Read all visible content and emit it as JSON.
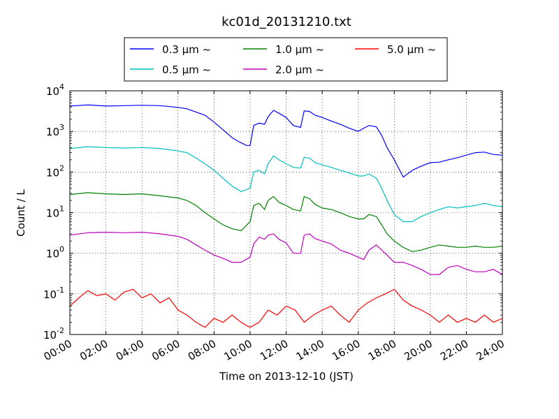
{
  "chart_data": {
    "type": "line",
    "title": "kc01d_20131210.txt",
    "xlabel": "Time on 2013-12-10 (JST)",
    "ylabel": "Count / L",
    "xlim_hours": [
      0,
      24
    ],
    "x_tick_labels": [
      "00:00",
      "02:00",
      "04:00",
      "06:00",
      "08:00",
      "10:00",
      "12:00",
      "14:00",
      "16:00",
      "18:00",
      "20:00",
      "22:00",
      "24:00"
    ],
    "y_scale": "log",
    "ylim": [
      0.01,
      10000
    ],
    "y_ticks": [
      {
        "base": "10",
        "exp": "4"
      },
      {
        "base": "10",
        "exp": "3"
      },
      {
        "base": "10",
        "exp": "2"
      },
      {
        "base": "10",
        "exp": "1"
      },
      {
        "base": "10",
        "exp": "0"
      },
      {
        "base": "10",
        "exp": "-1"
      },
      {
        "base": "10",
        "exp": "-2"
      }
    ],
    "grid": true,
    "legend": "top-center, outside plot, 3 columns",
    "series": [
      {
        "name": "0.3 μm ~",
        "color": "#0000ff",
        "x": [
          0,
          1,
          2,
          3,
          4,
          5,
          6,
          6.5,
          7,
          7.5,
          8,
          8.5,
          9,
          9.3,
          9.6,
          9.8,
          10,
          10.2,
          10.5,
          10.8,
          11,
          11.3,
          11.6,
          12,
          12.4,
          12.8,
          13,
          13.3,
          13.6,
          14,
          14.5,
          15,
          15.5,
          16,
          16.3,
          16.6,
          17,
          17.3,
          17.6,
          18,
          18.5,
          19,
          19.5,
          20,
          20.5,
          21,
          21.5,
          22,
          22.5,
          23,
          23.5,
          24
        ],
        "y": [
          4200,
          4500,
          4200,
          4300,
          4400,
          4300,
          3900,
          3600,
          3000,
          2500,
          1700,
          1100,
          700,
          580,
          500,
          450,
          450,
          1400,
          1600,
          1500,
          2300,
          3300,
          2800,
          2200,
          1400,
          1250,
          3200,
          3100,
          2500,
          2200,
          1800,
          1500,
          1200,
          1000,
          1200,
          1400,
          1300,
          800,
          400,
          200,
          75,
          110,
          140,
          170,
          175,
          200,
          225,
          260,
          300,
          310,
          270,
          260
        ]
      },
      {
        "name": "0.5 μm ~",
        "color": "#00bfbf",
        "x": [
          0,
          1,
          2,
          3,
          4,
          5,
          6,
          6.5,
          7,
          7.5,
          8,
          8.5,
          9,
          9.5,
          10,
          10.2,
          10.5,
          10.8,
          11,
          11.3,
          11.6,
          12,
          12.4,
          12.8,
          13,
          13.3,
          13.6,
          14,
          14.5,
          15,
          15.5,
          16,
          16.3,
          16.6,
          17,
          17.3,
          17.6,
          18,
          18.5,
          19,
          19.5,
          20,
          20.5,
          21,
          21.5,
          22,
          22.5,
          23,
          23.5,
          24
        ],
        "y": [
          380,
          420,
          400,
          390,
          400,
          380,
          330,
          300,
          220,
          160,
          110,
          70,
          45,
          33,
          40,
          100,
          110,
          90,
          160,
          250,
          200,
          160,
          130,
          125,
          230,
          220,
          170,
          150,
          130,
          110,
          95,
          80,
          80,
          90,
          70,
          40,
          20,
          9,
          6,
          6,
          8,
          10,
          12,
          14,
          13,
          14,
          15,
          17,
          15,
          14
        ]
      },
      {
        "name": "1.0 μm ~",
        "color": "#008000",
        "x": [
          0,
          1,
          2,
          3,
          4,
          5,
          6,
          6.5,
          7,
          7.5,
          8,
          8.5,
          9,
          9.5,
          10,
          10.2,
          10.5,
          10.8,
          11,
          11.3,
          11.6,
          12,
          12.4,
          12.8,
          13,
          13.3,
          13.6,
          14,
          14.5,
          15,
          15.5,
          16,
          16.3,
          16.6,
          17,
          17.3,
          17.6,
          18,
          18.5,
          19,
          19.5,
          20,
          20.5,
          21,
          21.5,
          22,
          22.5,
          23,
          23.5,
          24
        ],
        "y": [
          28,
          31,
          29,
          28,
          29,
          26,
          23,
          20,
          15,
          10,
          7,
          5,
          4,
          3.6,
          6,
          15,
          17,
          12,
          20,
          25,
          18,
          15,
          12,
          11,
          25,
          22,
          16,
          13,
          12,
          10,
          8,
          7,
          7,
          9,
          8,
          5,
          3,
          2,
          1.4,
          1.1,
          1.2,
          1.4,
          1.6,
          1.5,
          1.4,
          1.4,
          1.5,
          1.4,
          1.4,
          1.5
        ]
      },
      {
        "name": "2.0 μm ~",
        "color": "#bf00bf",
        "x": [
          0,
          1,
          2,
          3,
          4,
          5,
          6,
          6.5,
          7,
          7.5,
          8,
          8.5,
          9,
          9.5,
          10,
          10.2,
          10.5,
          10.8,
          11,
          11.3,
          11.6,
          12,
          12.4,
          12.8,
          13,
          13.3,
          13.6,
          14,
          14.5,
          15,
          15.5,
          16,
          16.3,
          16.6,
          17,
          17.3,
          17.6,
          18,
          18.5,
          19,
          19.5,
          20,
          20.5,
          21,
          21.5,
          22,
          22.5,
          23,
          23.5,
          24
        ],
        "y": [
          2.8,
          3.2,
          3.3,
          3.2,
          3.3,
          3,
          2.6,
          2.2,
          1.6,
          1.2,
          0.9,
          0.75,
          0.6,
          0.6,
          0.8,
          1.7,
          2.5,
          2.2,
          2.8,
          3,
          2.2,
          1.8,
          1,
          1,
          2.8,
          3,
          2.3,
          2,
          1.7,
          1.2,
          1,
          0.8,
          0.7,
          1.2,
          1.6,
          1.2,
          0.9,
          0.6,
          0.6,
          0.5,
          0.4,
          0.3,
          0.3,
          0.45,
          0.5,
          0.4,
          0.35,
          0.35,
          0.4,
          0.3
        ]
      },
      {
        "name": "5.0 μm ~",
        "color": "#ff0000",
        "x": [
          0,
          0.5,
          1,
          1.5,
          2,
          2.5,
          3,
          3.5,
          4,
          4.5,
          5,
          5.5,
          6,
          6.5,
          7,
          7.5,
          8,
          8.5,
          9,
          9.5,
          10,
          10.5,
          11,
          11.5,
          12,
          12.5,
          13,
          13.5,
          14,
          14.5,
          15,
          15.5,
          16,
          16.5,
          17,
          17.5,
          18,
          18.5,
          19,
          19.5,
          20,
          20.5,
          21,
          21.5,
          22,
          22.5,
          23,
          23.5,
          24
        ],
        "y": [
          0.05,
          0.08,
          0.12,
          0.09,
          0.1,
          0.07,
          0.11,
          0.13,
          0.08,
          0.1,
          0.06,
          0.08,
          0.04,
          0.03,
          0.02,
          0.015,
          0.025,
          0.02,
          0.03,
          0.02,
          0.015,
          0.02,
          0.04,
          0.03,
          0.05,
          0.04,
          0.02,
          0.03,
          0.04,
          0.05,
          0.03,
          0.02,
          0.04,
          0.06,
          0.08,
          0.1,
          0.13,
          0.07,
          0.05,
          0.04,
          0.03,
          0.02,
          0.03,
          0.02,
          0.025,
          0.02,
          0.03,
          0.02,
          0.025
        ]
      }
    ]
  }
}
